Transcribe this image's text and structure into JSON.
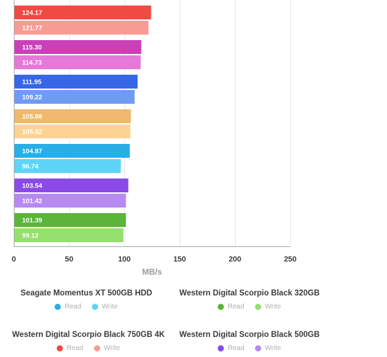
{
  "chart_data": {
    "type": "bar",
    "orientation": "horizontal",
    "xlabel": "MB/s",
    "xlim": [
      0,
      250
    ],
    "xticks": [
      "0",
      "50",
      "100",
      "150",
      "200",
      "250"
    ],
    "grid": true,
    "groups": [
      {
        "bars": [
          {
            "series": "Read",
            "value": 124.17,
            "label": "124.17",
            "color": "#ee4b43"
          },
          {
            "series": "Write",
            "value": 121.77,
            "label": "121.77",
            "color": "#f99b95"
          }
        ]
      },
      {
        "bars": [
          {
            "series": "Read",
            "value": 115.3,
            "label": "115.30",
            "color": "#c940b7"
          },
          {
            "series": "Write",
            "value": 114.73,
            "label": "114.73",
            "color": "#e678d9"
          }
        ]
      },
      {
        "bars": [
          {
            "series": "Read",
            "value": 111.95,
            "label": "111.95",
            "color": "#3567e6"
          },
          {
            "series": "Write",
            "value": 109.22,
            "label": "109.22",
            "color": "#6f9cf2"
          }
        ]
      },
      {
        "bars": [
          {
            "series": "Read",
            "value": 105.88,
            "label": "105.88",
            "color": "#efb86d"
          },
          {
            "series": "Write",
            "value": 105.52,
            "label": "105.52",
            "color": "#fdd394"
          }
        ]
      },
      {
        "group": "Seagate Momentus XT 500GB HDD",
        "bars": [
          {
            "series": "Read",
            "value": 104.87,
            "label": "104.87",
            "color": "#29aee6"
          },
          {
            "series": "Write",
            "value": 96.74,
            "label": "96.74",
            "color": "#5ed4f8"
          }
        ]
      },
      {
        "group": "Western Digital Scorpio Black 500GB",
        "bars": [
          {
            "series": "Read",
            "value": 103.54,
            "label": "103.54",
            "color": "#8b4ae6"
          },
          {
            "series": "Write",
            "value": 101.42,
            "label": "101.42",
            "color": "#b78af2"
          }
        ]
      },
      {
        "group": "Western Digital Scorpio Black 320GB",
        "bars": [
          {
            "series": "Read",
            "value": 101.39,
            "label": "101.39",
            "color": "#5ab53a"
          },
          {
            "series": "Write",
            "value": 99.12,
            "label": "99.12",
            "color": "#95df6e"
          }
        ]
      }
    ]
  },
  "legend": {
    "groups": [
      {
        "title": "Seagate Momentus XT 500GB HDD",
        "read_label": "Read",
        "write_label": "Write",
        "read_color": "#29aee6",
        "write_color": "#5ed4f8"
      },
      {
        "title": "Western Digital Scorpio Black 320GB",
        "read_label": "Read",
        "write_label": "Write",
        "read_color": "#5ab53a",
        "write_color": "#95df6e"
      },
      {
        "title": "Western Digital Scorpio Black 750GB 4K",
        "read_label": "Read",
        "write_label": "Write",
        "read_color": "#ee4b43",
        "write_color": "#f99b95"
      },
      {
        "title": "Western Digital Scorpio Black 500GB",
        "read_label": "Read",
        "write_label": "Write",
        "read_color": "#8b4ae6",
        "write_color": "#b78af2"
      }
    ]
  }
}
